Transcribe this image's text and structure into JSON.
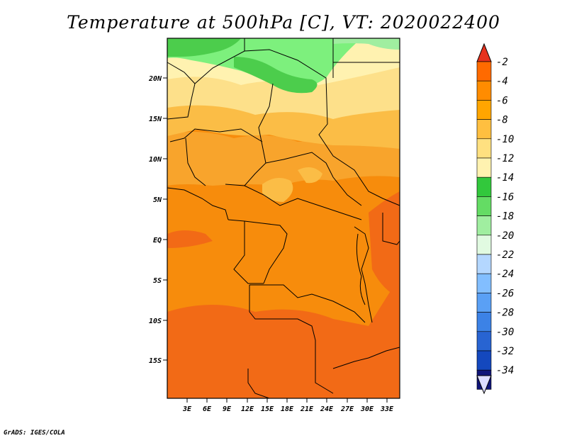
{
  "title": "Temperature at 500hPa [C], VT: 2020022400",
  "credit": "GrADS: IGES/COLA",
  "map": {
    "region": "Central Africa",
    "lat_labels": [
      "20N",
      "15N",
      "10N",
      "5N",
      "EQ",
      "5S",
      "10S",
      "15S"
    ],
    "lon_labels": [
      "3E",
      "6E",
      "9E",
      "12E",
      "15E",
      "18E",
      "21E",
      "24E",
      "27E",
      "30E",
      "33E"
    ]
  },
  "colorbar": {
    "labels": [
      "-2",
      "-4",
      "-6",
      "-8",
      "-10",
      "-12",
      "-14",
      "-16",
      "-18",
      "-20",
      "-22",
      "-24",
      "-26",
      "-28",
      "-30",
      "-32",
      "-34"
    ],
    "colors": [
      "#ff6a00",
      "#ff8c00",
      "#ffa500",
      "#ffbf40",
      "#ffe080",
      "#fff2b0",
      "#32c83c",
      "#64dc64",
      "#a0eea0",
      "#e1fae1",
      "#b4d7ff",
      "#82beff",
      "#5aa0f5",
      "#3c82e6",
      "#2864d2",
      "#1448be",
      "#0f1478"
    ],
    "top_arrow_color": "#e6321e",
    "bottom_arrow_color": "#dcdcff"
  },
  "field_colors": {
    "warmest": "#f26a16",
    "warm": "#f78c0c",
    "mid": "#f8a42c",
    "cool": "#fbbd46",
    "cooler": "#fde08a",
    "pale": "#fff2b0",
    "green_light": "#7df07d",
    "green": "#4ccd4c",
    "green_dark": "#32c83c"
  }
}
